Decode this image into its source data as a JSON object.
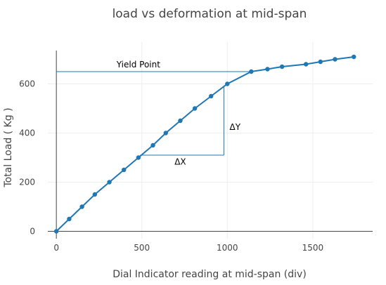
{
  "chart_data": {
    "type": "line",
    "title": "load vs deformation at mid-span",
    "xlabel": "Dial Indicator reading at mid-span (div)",
    "ylabel": "Total Load ( Kg )",
    "xlim": [
      -50,
      1850
    ],
    "ylim": [
      -30,
      770
    ],
    "xticks": [
      0,
      500,
      1000,
      1500
    ],
    "yticks": [
      0,
      200,
      400,
      600
    ],
    "grid": true,
    "legend": "none",
    "line_color": "#1f77b4",
    "series": [
      {
        "x": [
          0,
          75,
          150,
          225,
          310,
          395,
          480,
          565,
          640,
          725,
          810,
          905,
          1000,
          1140,
          1235,
          1320,
          1460,
          1545,
          1630,
          1740
        ],
        "y": [
          0,
          50,
          100,
          150,
          200,
          250,
          300,
          350,
          400,
          450,
          500,
          550,
          600,
          650,
          660,
          670,
          680,
          690,
          700,
          710
        ]
      }
    ],
    "annotations": [
      {
        "text": "Yield Point",
        "x": 480,
        "y": 678
      },
      {
        "text": "ΔY",
        "x": 1045,
        "y": 425
      },
      {
        "text": "ΔX",
        "x": 725,
        "y": 283
      }
    ],
    "shapes": [
      {
        "kind": "hline",
        "y": 650,
        "x0": 0,
        "x1": 1140
      },
      {
        "kind": "hline",
        "y": 310,
        "x0": 490,
        "x1": 980
      },
      {
        "kind": "vline",
        "x": 980,
        "y0": 310,
        "y1": 590
      }
    ]
  }
}
